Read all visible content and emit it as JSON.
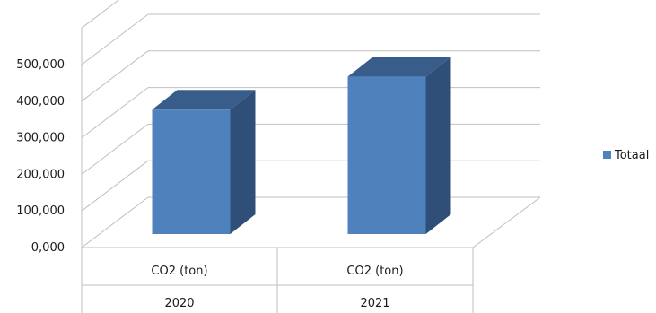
{
  "chart_data": {
    "type": "bar",
    "style": "3d-column",
    "categories": [
      {
        "label": "CO2 (ton)",
        "group": "2020"
      },
      {
        "label": "CO2 (ton)",
        "group": "2021"
      }
    ],
    "series": [
      {
        "name": "Totaal",
        "values": [
          340000,
          430000
        ],
        "color": "#4f81bd"
      }
    ],
    "ylim": [
      0,
      500000
    ],
    "yticks": [
      "0,000",
      "100,000",
      "200,000",
      "300,000",
      "400,000",
      "500,000"
    ],
    "grid": true,
    "legend_position": "right",
    "colors": {
      "bar_front": "#4f81bd",
      "bar_top": "#385d8a",
      "bar_side": "#2f4f79",
      "grid": "#bfbfbf"
    }
  }
}
